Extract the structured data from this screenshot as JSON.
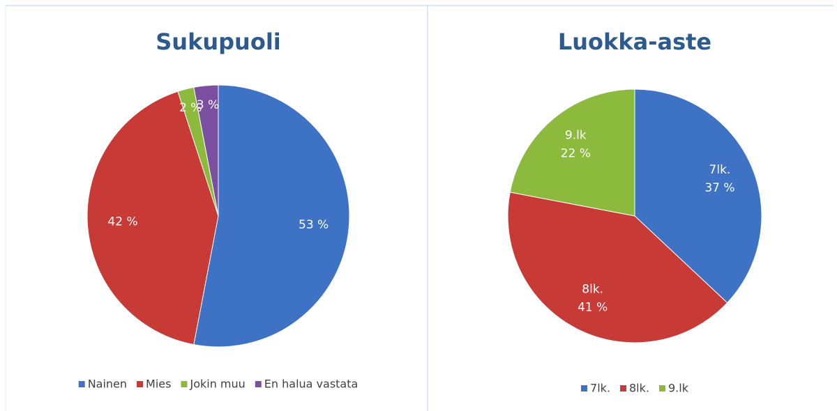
{
  "chart_data": [
    {
      "type": "pie",
      "title": "Sukupuoli",
      "categories": [
        "Nainen",
        "Mies",
        "Jokin muu",
        "En halua vastata"
      ],
      "values": [
        53,
        42,
        2,
        3
      ],
      "value_labels": [
        "53 %",
        "42 %",
        "2 %",
        "3 %"
      ],
      "colors": [
        "#3d72c4",
        "#c83a35",
        "#8cba3c",
        "#7a4f9f"
      ],
      "legend": "bottom",
      "category_in_label": false
    },
    {
      "type": "pie",
      "title": "Luokka-aste",
      "categories": [
        "7lk.",
        "8lk.",
        "9.lk"
      ],
      "values": [
        37,
        41,
        22
      ],
      "value_labels": [
        "37 %",
        "41 %",
        "22 %"
      ],
      "colors": [
        "#3d72c4",
        "#c83a35",
        "#8cba3c"
      ],
      "legend": "bottom",
      "category_in_label": true
    }
  ]
}
